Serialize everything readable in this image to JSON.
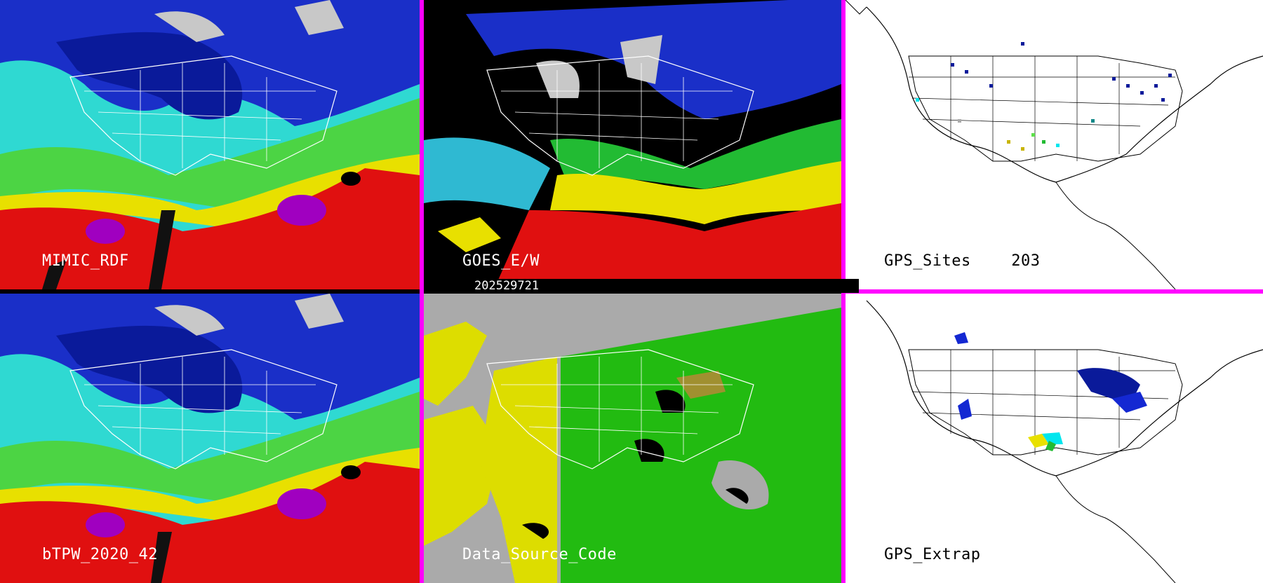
{
  "panels": {
    "mimic": {
      "label": "MIMIC_RDF"
    },
    "goes": {
      "label": "GOES_E/W"
    },
    "gps_sites": {
      "label": "GPS_Sites",
      "count": "203"
    },
    "btpw": {
      "label": "bTPW_2020_42"
    },
    "data_source": {
      "label": "Data_Source_Code"
    },
    "gps_extrap": {
      "label": "GPS_Extrap"
    }
  },
  "timestamp": "202529721",
  "colors": {
    "separator": "#ff00ff",
    "tpw_scale": [
      "#000000",
      "#3a1a8c",
      "#1428d2",
      "#0a5aff",
      "#00e6ee",
      "#22bb33",
      "#5de04a",
      "#e8e000",
      "#ff0000",
      "#b000c8"
    ],
    "source_codes": [
      "#aaaaaa",
      "#dddd00",
      "#22bb11",
      "#000000"
    ]
  }
}
